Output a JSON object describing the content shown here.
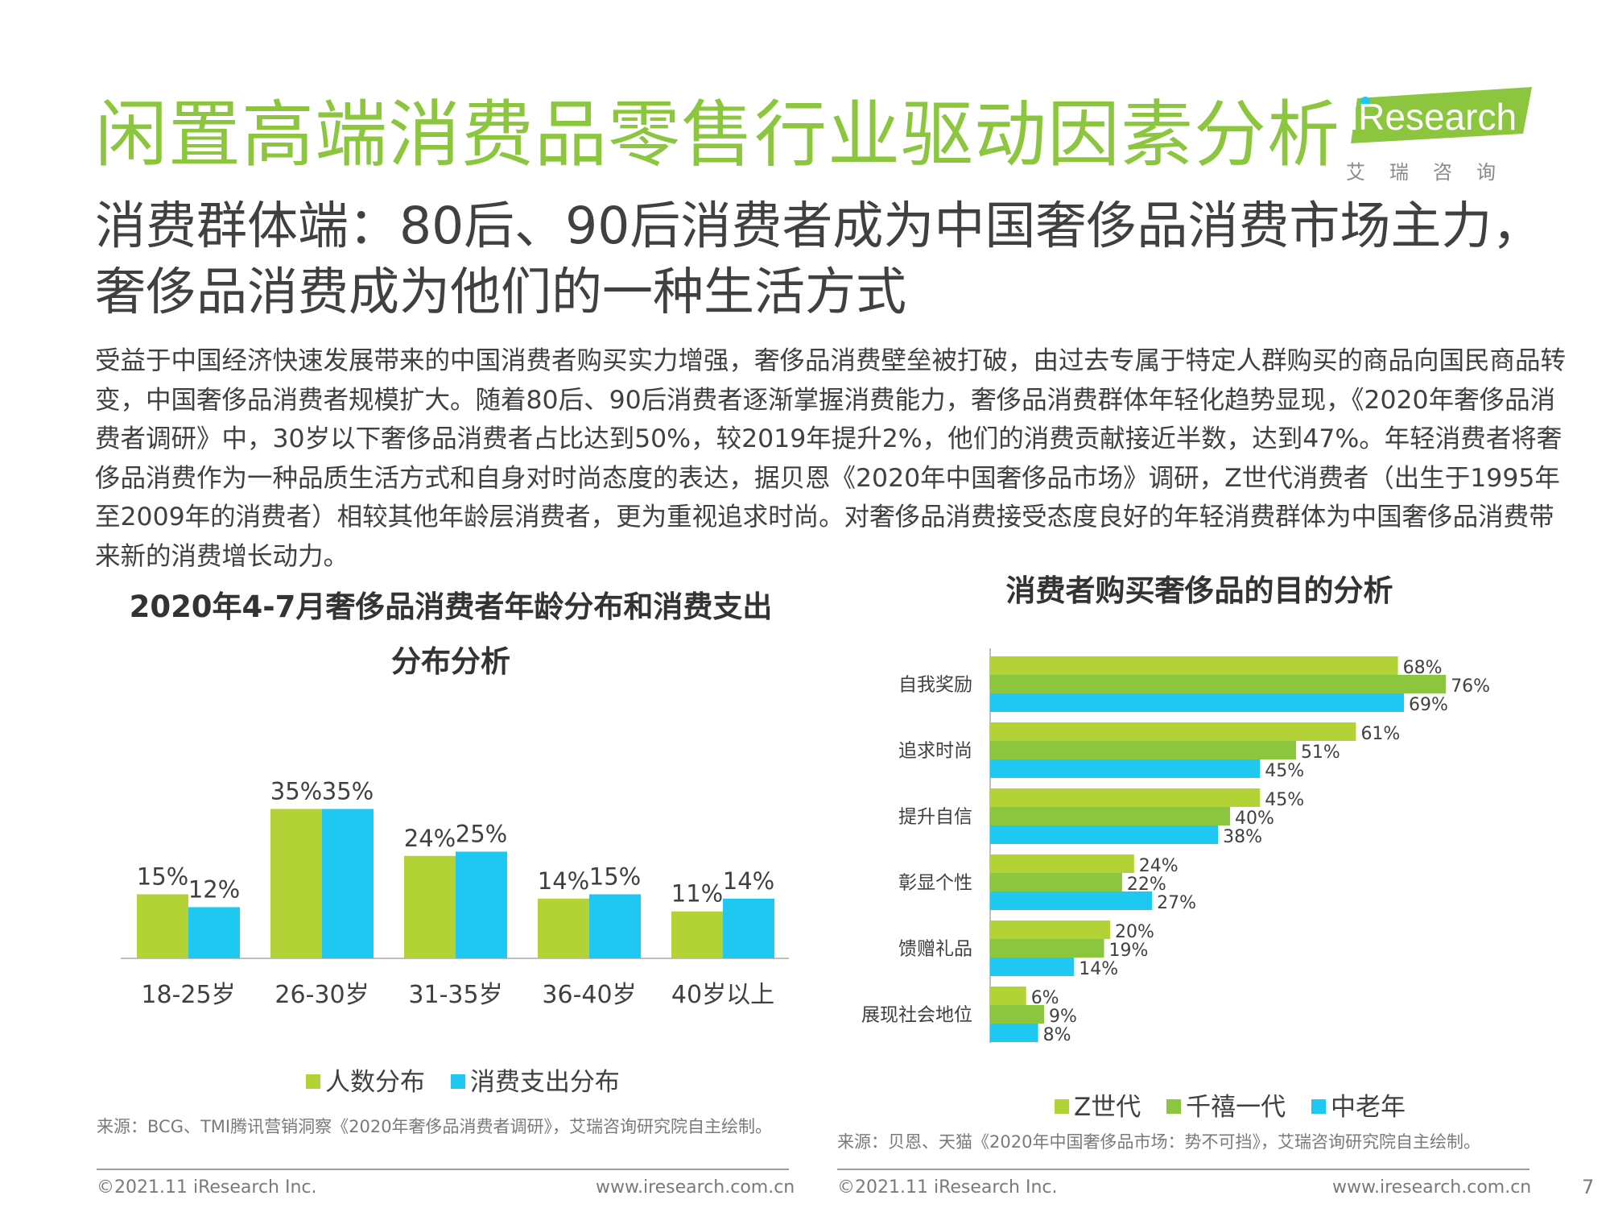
{
  "header": {
    "title": "闲置高端消费品零售行业驱动因素分析",
    "logo_text": "iResearch",
    "logo_subtitle": "艾瑞咨询",
    "brand_color": "#8cc63f"
  },
  "subtitle": "消费群体端：80后、90后消费者成为中国奢侈品消费市场主力，奢侈品消费成为他们的一种生活方式",
  "body_text": "受益于中国经济快速发展带来的中国消费者购买实力增强，奢侈品消费壁垒被打破，由过去专属于特定人群购买的商品向国民商品转变，中国奢侈品消费者规模扩大。随着80后、90后消费者逐渐掌握消费能力，奢侈品消费群体年轻化趋势显现，《2020年奢侈品消费者调研》中，30岁以下奢侈品消费者占比达到50%，较2019年提升2%，他们的消费贡献接近半数，达到47%。年轻消费者将奢侈品消费作为一种品质生活方式和自身对时尚态度的表达，据贝恩《2020年中国奢侈品市场》调研，Z世代消费者（出生于1995年至2009年的消费者）相较其他年龄层消费者，更为重视追求时尚。对奢侈品消费接受态度良好的年轻消费群体为中国奢侈品消费带来新的消费增长动力。",
  "chart_data": [
    {
      "type": "bar",
      "title": "2020年4-7月奢侈品消费者年龄分布和消费支出分布分析",
      "categories": [
        "18-25岁",
        "26-30岁",
        "31-35岁",
        "36-40岁",
        "40岁以上"
      ],
      "series": [
        {
          "name": "人数分布",
          "color": "#b2d235",
          "values": [
            15,
            35,
            24,
            14,
            11
          ],
          "labels": [
            "15%",
            "35%",
            "24%",
            "14%",
            "11%"
          ]
        },
        {
          "name": "消费支出分布",
          "color": "#1ec8f0",
          "values": [
            12,
            35,
            25,
            15,
            14
          ],
          "labels": [
            "12%",
            "35%",
            "25%",
            "15%",
            "14%"
          ]
        }
      ],
      "ylim": [
        0,
        40
      ],
      "grid": false,
      "legend": "bottom",
      "source": "来源：BCG、TMI腾讯营销洞察《2020年奢侈品消费者调研》，艾瑞咨询研究院自主绘制。"
    },
    {
      "type": "bar",
      "orientation": "horizontal",
      "title": "消费者购买奢侈品的目的分析",
      "categories": [
        "自我奖励",
        "追求时尚",
        "提升自信",
        "彰显个性",
        "馈赠礼品",
        "展现社会地位"
      ],
      "series": [
        {
          "name": "Z世代",
          "color": "#b2d235",
          "values": [
            68,
            61,
            45,
            24,
            20,
            6
          ],
          "labels": [
            "68%",
            "61%",
            "45%",
            "24%",
            "20%",
            "6%"
          ]
        },
        {
          "name": "千禧一代",
          "color": "#8cc63f",
          "values": [
            76,
            51,
            40,
            22,
            19,
            9
          ],
          "labels": [
            "76%",
            "51%",
            "40%",
            "22%",
            "19%",
            "9%"
          ]
        },
        {
          "name": "中老年",
          "color": "#1ec8f0",
          "values": [
            69,
            45,
            38,
            27,
            14,
            8
          ],
          "labels": [
            "69%",
            "45%",
            "38%",
            "27%",
            "14%",
            "8%"
          ]
        }
      ],
      "xlim": [
        0,
        80
      ],
      "grid": false,
      "legend": "bottom",
      "source": "来源：贝恩、天猫《2020年中国奢侈品市场：势不可挡》，艾瑞咨询研究院自主绘制。"
    }
  ],
  "footer": {
    "copyright_left": "©2021.11 iResearch Inc.",
    "website_left": "www.iresearch.com.cn",
    "copyright_right": "©2021.11 iResearch Inc.",
    "website_right": "www.iresearch.com.cn",
    "page_number": "7"
  }
}
